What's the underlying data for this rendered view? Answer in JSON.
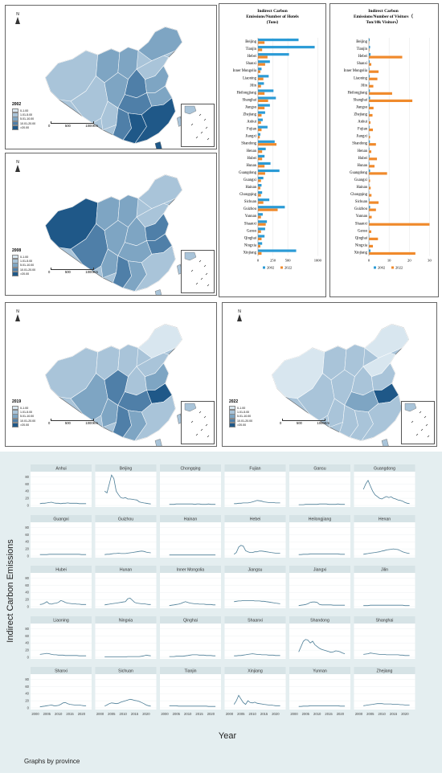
{
  "maps": [
    {
      "year": "2002",
      "color_hint": "mid"
    },
    {
      "year": "2008",
      "color_hint": "mid"
    },
    {
      "year": "2019",
      "color_hint": "mid"
    },
    {
      "year": "2022",
      "color_hint": "light"
    }
  ],
  "map_legend": [
    "0-1.00",
    "1.01-5.00",
    "5.01-10.00",
    "10.01-20.00",
    ">20.00"
  ],
  "map_legend_colors": [
    "#d8e6ef",
    "#a9c4d9",
    "#7ea5c3",
    "#4f7fa8",
    "#1f5888"
  ],
  "map_scale_labels": [
    "0",
    "500",
    "1000Km"
  ],
  "north_label": "N",
  "hotels_chart": {
    "title_lines": [
      "Indirect Carbon",
      "Emissions/Number of Hotels",
      "(Tons)"
    ],
    "provinces": [
      "Beijing",
      "Tianjin",
      "Hebei",
      "Shanxi",
      "Inner Mongolia",
      "Liaoning",
      "Jilin",
      "Heilongjiang",
      "Shanghai",
      "Jiangsu",
      "Zhejiang",
      "Anhui",
      "Fujian",
      "Jiangxi",
      "Shandong",
      "Henan",
      "Hubei",
      "Hunan",
      "Guangdong",
      "Guangxi",
      "Hainan",
      "Chongqing",
      "Sichuan",
      "Guizhou",
      "Yunnan",
      "Shaanxi",
      "Gansu",
      "Qinghai",
      "Ningxia",
      "Xinjiang"
    ],
    "values_2002": [
      680,
      950,
      520,
      200,
      60,
      180,
      100,
      260,
      300,
      200,
      120,
      80,
      160,
      40,
      280,
      130,
      110,
      210,
      360,
      90,
      60,
      70,
      190,
      450,
      80,
      150,
      120,
      110,
      70,
      640
    ],
    "values_2022": [
      110,
      70,
      160,
      120,
      40,
      90,
      50,
      110,
      170,
      110,
      60,
      50,
      60,
      30,
      310,
      70,
      70,
      110,
      120,
      50,
      40,
      50,
      90,
      330,
      50,
      130,
      50,
      60,
      40,
      60
    ],
    "ticks": [
      "0",
      "250",
      "500",
      "1000"
    ],
    "tick_values": [
      0,
      250,
      500,
      1000
    ],
    "xmax": 1050,
    "legend": [
      "2002",
      "2022"
    ]
  },
  "visitors_chart": {
    "title_lines": [
      "Indirect Carbon",
      "Emissions/Number of Visitors（",
      "Ton/10k Visitors）"
    ],
    "provinces": [
      "Beijing",
      "Tianjin",
      "Hebei",
      "Shanxi",
      "Inner Mongolia",
      "Liaoning",
      "Jilin",
      "Heilongjiang",
      "Shanghai",
      "Jiangsu",
      "Zhejiang",
      "Anhui",
      "Fujian",
      "Jiangxi",
      "Shandong",
      "Henan",
      "Hubei",
      "Hunan",
      "Guangdong",
      "Guangxi",
      "Hainan",
      "Chongqing",
      "Sichuan",
      "Guizhou",
      "Yunnan",
      "Shaanxi",
      "Gansu",
      "Qinghai",
      "Ningxia",
      "Xinjiang"
    ],
    "values_2002": [
      0.4,
      0.6,
      0.8,
      0.4,
      0.3,
      0.4,
      0.3,
      0.5,
      0.6,
      0.4,
      0.3,
      0.2,
      0.3,
      0.2,
      0.5,
      0.3,
      0.3,
      0.3,
      0.6,
      0.2,
      0.2,
      0.2,
      0.3,
      0.6,
      0.2,
      0.3,
      0.2,
      0.2,
      0.2,
      0.8
    ],
    "values_2022": [
      0.2,
      0.3,
      16.5,
      1.2,
      4.8,
      4.2,
      2.2,
      11.5,
      21.5,
      2.3,
      1.8,
      0.8,
      2.0,
      0.6,
      3.5,
      1.2,
      4.0,
      2.8,
      9.0,
      0.6,
      0.9,
      1.3,
      4.8,
      3.5,
      1.4,
      30.0,
      1.2,
      4.5,
      2.0,
      23.0
    ],
    "ticks": [
      "0",
      "10",
      "20",
      "30"
    ],
    "tick_values": [
      0,
      10,
      20,
      30
    ],
    "xmax": 31,
    "legend": [
      "2002",
      "2022"
    ]
  },
  "series_colors": {
    "y2002": "#2b9bd6",
    "y2022": "#f08a2c"
  },
  "facets": {
    "ylabel": "Indirect Carbon Emissions",
    "xlabel": "Year",
    "caption": "Graphs by province",
    "y_ticks": [
      "0",
      "20",
      "40",
      "60",
      "80"
    ],
    "x_ticks": [
      "2000",
      "2005",
      "2010",
      "2015",
      "2020"
    ],
    "years": [
      2002,
      2003,
      2004,
      2005,
      2006,
      2007,
      2008,
      2009,
      2010,
      2011,
      2012,
      2013,
      2014,
      2015,
      2016,
      2017,
      2018,
      2019,
      2020,
      2021,
      2022
    ],
    "panels": [
      {
        "name": "Anhui",
        "values": [
          5,
          6,
          6,
          7,
          8,
          9,
          7,
          6,
          6,
          5,
          6,
          6,
          7,
          6,
          6,
          6,
          6,
          5,
          5,
          5,
          5
        ]
      },
      {
        "name": "Beijing",
        "values": [
          40,
          35,
          60,
          85,
          75,
          40,
          30,
          22,
          20,
          22,
          18,
          18,
          17,
          16,
          15,
          10,
          8,
          7,
          6,
          5,
          4
        ]
      },
      {
        "name": "Chongqing",
        "values": [
          3,
          3,
          3,
          4,
          4,
          4,
          4,
          4,
          4,
          4,
          4,
          3,
          4,
          4,
          3,
          3,
          3,
          4,
          3,
          3,
          3
        ]
      },
      {
        "name": "Fujian",
        "values": [
          5,
          5,
          6,
          6,
          7,
          7,
          7,
          8,
          10,
          12,
          14,
          13,
          12,
          10,
          9,
          8,
          8,
          8,
          7,
          7,
          7
        ]
      },
      {
        "name": "Gansu",
        "values": [
          2,
          2,
          2,
          3,
          3,
          3,
          3,
          3,
          3,
          4,
          4,
          4,
          4,
          3,
          3,
          3,
          3,
          4,
          3,
          3,
          3
        ]
      },
      {
        "name": "Guangdong",
        "values": [
          45,
          60,
          70,
          55,
          40,
          30,
          25,
          20,
          18,
          22,
          25,
          22,
          24,
          20,
          18,
          15,
          14,
          12,
          8,
          6,
          5
        ]
      },
      {
        "name": "Guangxi",
        "values": [
          4,
          4,
          4,
          4,
          5,
          5,
          5,
          5,
          5,
          5,
          5,
          5,
          5,
          5,
          5,
          5,
          5,
          5,
          4,
          4,
          4
        ]
      },
      {
        "name": "Guizhou",
        "values": [
          4,
          5,
          5,
          6,
          7,
          7,
          8,
          7,
          7,
          7,
          8,
          9,
          10,
          11,
          12,
          13,
          14,
          13,
          11,
          10,
          9
        ]
      },
      {
        "name": "Hainan",
        "values": [
          3,
          3,
          3,
          3,
          3,
          3,
          3,
          3,
          3,
          3,
          3,
          3,
          3,
          3,
          3,
          3,
          3,
          3,
          3,
          3,
          3
        ]
      },
      {
        "name": "Hebei",
        "values": [
          5,
          10,
          25,
          30,
          28,
          15,
          12,
          10,
          10,
          12,
          12,
          14,
          14,
          13,
          12,
          11,
          10,
          9,
          8,
          8,
          8
        ]
      },
      {
        "name": "Heilongjiang",
        "values": [
          4,
          4,
          5,
          5,
          5,
          6,
          6,
          6,
          6,
          6,
          6,
          6,
          6,
          6,
          6,
          6,
          6,
          6,
          5,
          5,
          5
        ]
      },
      {
        "name": "Henan",
        "values": [
          5,
          6,
          7,
          8,
          9,
          10,
          11,
          12,
          14,
          15,
          17,
          18,
          19,
          20,
          19,
          18,
          15,
          12,
          10,
          8,
          7
        ]
      },
      {
        "name": "Hubei",
        "values": [
          6,
          7,
          10,
          14,
          8,
          7,
          9,
          10,
          12,
          17,
          15,
          12,
          10,
          9,
          8,
          8,
          7,
          7,
          6,
          6,
          6
        ]
      },
      {
        "name": "Hunan",
        "values": [
          5,
          6,
          7,
          8,
          9,
          10,
          11,
          12,
          13,
          14,
          22,
          24,
          18,
          12,
          10,
          9,
          8,
          8,
          7,
          6,
          6
        ]
      },
      {
        "name": "Inner Mongolia",
        "values": [
          3,
          4,
          5,
          6,
          7,
          9,
          12,
          14,
          12,
          10,
          9,
          8,
          8,
          7,
          7,
          7,
          6,
          6,
          6,
          5,
          5
        ]
      },
      {
        "name": "Jiangsu",
        "values": [
          14,
          15,
          16,
          16,
          17,
          17,
          17,
          17,
          17,
          16,
          16,
          16,
          15,
          15,
          14,
          13,
          12,
          11,
          10,
          9,
          8
        ]
      },
      {
        "name": "Jiangxi",
        "values": [
          3,
          4,
          5,
          6,
          8,
          12,
          13,
          13,
          12,
          6,
          5,
          5,
          5,
          5,
          5,
          4,
          4,
          4,
          4,
          4,
          4
        ]
      },
      {
        "name": "Jilin",
        "values": [
          3,
          3,
          3,
          4,
          4,
          4,
          4,
          4,
          4,
          4,
          4,
          4,
          4,
          4,
          4,
          4,
          4,
          4,
          3,
          3,
          3
        ]
      },
      {
        "name": "Liaoning",
        "values": [
          8,
          9,
          10,
          11,
          10,
          8,
          7,
          7,
          6,
          6,
          6,
          5,
          5,
          5,
          5,
          5,
          5,
          4,
          4,
          4,
          4
        ]
      },
      {
        "name": "Ningxia",
        "values": [
          1,
          1,
          1,
          1,
          1,
          1,
          1,
          1,
          1,
          1,
          2,
          2,
          2,
          2,
          2,
          2,
          3,
          4,
          6,
          5,
          4
        ]
      },
      {
        "name": "Qinghai",
        "values": [
          2,
          2,
          2,
          3,
          3,
          3,
          3,
          4,
          5,
          6,
          7,
          7,
          7,
          6,
          6,
          6,
          5,
          5,
          5,
          4,
          4
        ]
      },
      {
        "name": "Shaanxi",
        "values": [
          4,
          4,
          5,
          5,
          6,
          7,
          8,
          9,
          10,
          9,
          8,
          8,
          7,
          7,
          7,
          6,
          6,
          6,
          5,
          5,
          5
        ]
      },
      {
        "name": "Shandong",
        "values": [
          15,
          30,
          45,
          50,
          48,
          40,
          45,
          35,
          30,
          25,
          22,
          20,
          18,
          16,
          14,
          15,
          18,
          17,
          15,
          12,
          10
        ]
      },
      {
        "name": "Shanghai",
        "values": [
          8,
          9,
          10,
          12,
          11,
          10,
          9,
          8,
          8,
          8,
          7,
          7,
          7,
          7,
          7,
          7,
          6,
          6,
          5,
          5,
          5
        ]
      },
      {
        "name": "Shanxi",
        "values": [
          3,
          4,
          5,
          6,
          7,
          8,
          6,
          6,
          7,
          10,
          14,
          15,
          12,
          10,
          9,
          8,
          8,
          8,
          7,
          6,
          6
        ]
      },
      {
        "name": "Sichuan",
        "values": [
          5,
          8,
          12,
          14,
          13,
          12,
          13,
          16,
          18,
          20,
          22,
          24,
          23,
          21,
          20,
          18,
          15,
          12,
          8,
          6,
          5
        ]
      },
      {
        "name": "Tianjin",
        "values": [
          6,
          6,
          6,
          6,
          5,
          5,
          5,
          5,
          5,
          5,
          5,
          5,
          5,
          5,
          5,
          5,
          5,
          4,
          4,
          4,
          4
        ]
      },
      {
        "name": "Xinjiang",
        "values": [
          10,
          20,
          35,
          25,
          15,
          10,
          20,
          15,
          14,
          16,
          13,
          12,
          11,
          10,
          9,
          8,
          8,
          7,
          6,
          6,
          6
        ]
      },
      {
        "name": "Yunnan",
        "values": [
          4,
          4,
          5,
          5,
          5,
          6,
          6,
          6,
          6,
          6,
          6,
          6,
          6,
          6,
          6,
          6,
          6,
          6,
          5,
          5,
          5
        ]
      },
      {
        "name": "Zhejiang",
        "values": [
          6,
          7,
          8,
          9,
          10,
          11,
          12,
          12,
          12,
          11,
          11,
          11,
          11,
          10,
          10,
          10,
          9,
          9,
          8,
          8,
          8
        ]
      }
    ]
  }
}
